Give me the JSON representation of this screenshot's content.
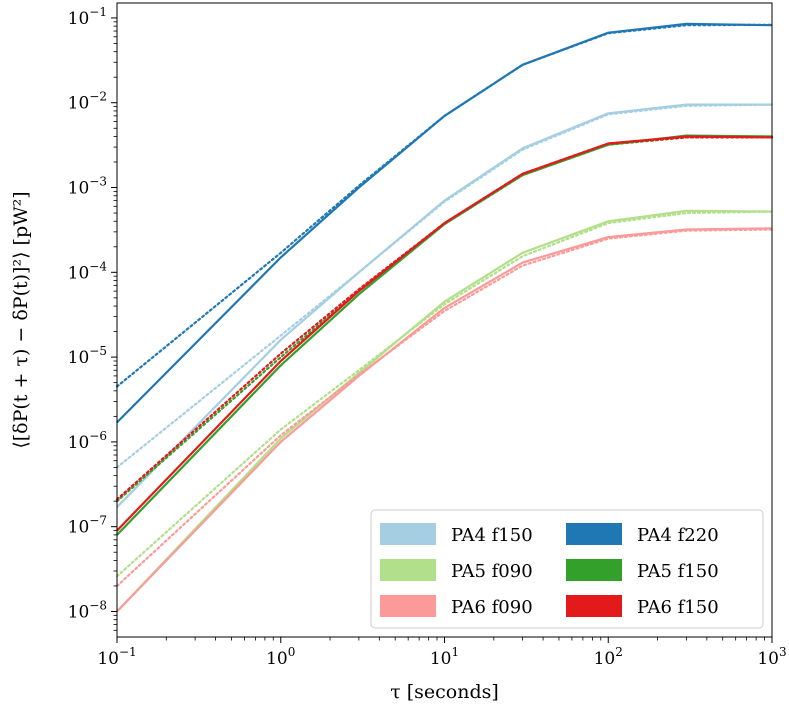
{
  "chart_data": {
    "type": "line",
    "xlabel": "τ [seconds]",
    "ylabel": "⟨[δP(t + τ) − δP(t)]²⟩ [pW²]",
    "xscale": "log",
    "yscale": "log",
    "xlim": [
      0.1,
      1000
    ],
    "ylim": [
      5e-09,
      0.15
    ],
    "x_ticks": [
      {
        "value": 0.1,
        "base": "10",
        "exp": "−1"
      },
      {
        "value": 1,
        "base": "10",
        "exp": "0"
      },
      {
        "value": 10,
        "base": "10",
        "exp": "1"
      },
      {
        "value": 100,
        "base": "10",
        "exp": "2"
      },
      {
        "value": 1000,
        "base": "10",
        "exp": "3"
      }
    ],
    "y_ticks": [
      {
        "value": 1e-08,
        "base": "10",
        "exp": "−8"
      },
      {
        "value": 1e-07,
        "base": "10",
        "exp": "−7"
      },
      {
        "value": 1e-06,
        "base": "10",
        "exp": "−6"
      },
      {
        "value": 1e-05,
        "base": "10",
        "exp": "−5"
      },
      {
        "value": 0.0001,
        "base": "10",
        "exp": "−4"
      },
      {
        "value": 0.001,
        "base": "10",
        "exp": "−3"
      },
      {
        "value": 0.01,
        "base": "10",
        "exp": "−2"
      },
      {
        "value": 0.1,
        "base": "10",
        "exp": "−1"
      }
    ],
    "grid": false,
    "legend_position": "bottom-right",
    "legend_columns": 2,
    "series": [
      {
        "name": "PA4 f150",
        "color": "#a6cee3",
        "x": [
          0.1,
          1,
          3,
          10,
          30,
          100,
          300,
          1000
        ],
        "y": [
          1.7e-07,
          1.6e-05,
          0.0001,
          0.0007,
          0.0029,
          0.0075,
          0.0095,
          0.0095
        ],
        "model_x": [
          0.1,
          1,
          3,
          10,
          30,
          100,
          300,
          1000
        ],
        "model_y": [
          5e-07,
          1.8e-05,
          0.0001,
          0.00068,
          0.0028,
          0.0073,
          0.0092,
          0.0095
        ]
      },
      {
        "name": "PA4 f220",
        "color": "#1f78b4",
        "x": [
          0.1,
          1,
          3,
          10,
          30,
          100,
          300,
          1000
        ],
        "y": [
          1.7e-06,
          0.00015,
          0.001,
          0.007,
          0.028,
          0.067,
          0.085,
          0.082
        ],
        "model_x": [
          0.1,
          1,
          3,
          10,
          30,
          100,
          300,
          1000
        ],
        "model_y": [
          4.5e-06,
          0.00017,
          0.00105,
          0.007,
          0.028,
          0.066,
          0.082,
          0.083
        ]
      },
      {
        "name": "PA5 f090",
        "color": "#b2df8a",
        "x": [
          0.1,
          1,
          3,
          10,
          30,
          100,
          300,
          1000
        ],
        "y": [
          1e-08,
          1.1e-06,
          6.5e-06,
          4.5e-05,
          0.00017,
          0.0004,
          0.00053,
          0.00052
        ],
        "model_x": [
          0.1,
          1,
          3,
          10,
          30,
          100,
          300,
          1000
        ],
        "model_y": [
          2.6e-08,
          1.4e-06,
          7e-06,
          4.2e-05,
          0.000155,
          0.00038,
          0.0005,
          0.00052
        ]
      },
      {
        "name": "PA5 f150",
        "color": "#33a02c",
        "x": [
          0.1,
          1,
          3,
          10,
          30,
          100,
          300,
          1000
        ],
        "y": [
          8e-08,
          8e-06,
          5.5e-05,
          0.00037,
          0.0014,
          0.0032,
          0.0041,
          0.004
        ],
        "model_x": [
          0.1,
          1,
          3,
          10,
          30,
          100,
          300,
          1000
        ],
        "model_y": [
          2e-07,
          1e-05,
          6e-05,
          0.00037,
          0.0014,
          0.0032,
          0.0039,
          0.004
        ]
      },
      {
        "name": "PA6 f090",
        "color": "#fb9a99",
        "x": [
          0.1,
          1,
          3,
          10,
          30,
          100,
          300,
          1000
        ],
        "y": [
          1e-08,
          1e-06,
          6e-06,
          3.8e-05,
          0.00013,
          0.00026,
          0.00032,
          0.00033
        ],
        "model_x": [
          0.1,
          1,
          3,
          10,
          30,
          100,
          300,
          1000
        ],
        "model_y": [
          2e-08,
          1.2e-06,
          6.2e-06,
          3.5e-05,
          0.00012,
          0.00025,
          0.00031,
          0.00032
        ]
      },
      {
        "name": "PA6 f150",
        "color": "#e31a1c",
        "x": [
          0.1,
          1,
          3,
          10,
          30,
          100,
          300,
          1000
        ],
        "y": [
          9e-08,
          9e-06,
          6e-05,
          0.00038,
          0.00145,
          0.0033,
          0.004,
          0.0039
        ],
        "model_x": [
          0.1,
          1,
          3,
          10,
          30,
          100,
          300,
          1000
        ],
        "model_y": [
          2.1e-07,
          1.1e-05,
          6.3e-05,
          0.00038,
          0.00145,
          0.0033,
          0.0039,
          0.0039
        ]
      }
    ],
    "legend": [
      {
        "label": "PA4 f150",
        "color": "#a6cee3"
      },
      {
        "label": "PA4 f220",
        "color": "#1f78b4"
      },
      {
        "label": "PA5 f090",
        "color": "#b2df8a"
      },
      {
        "label": "PA5 f150",
        "color": "#33a02c"
      },
      {
        "label": "PA6 f090",
        "color": "#fb9a99"
      },
      {
        "label": "PA6 f150",
        "color": "#e31a1c"
      }
    ]
  }
}
